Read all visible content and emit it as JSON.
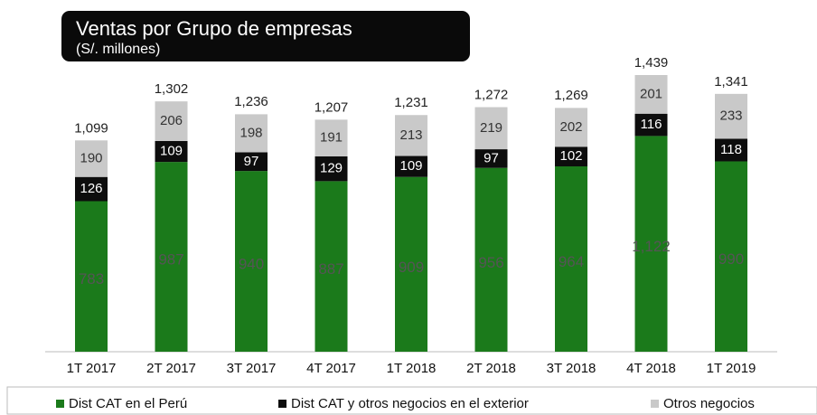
{
  "chart_data": {
    "type": "stacked_bar",
    "title": "Ventas por Grupo de empresas",
    "subtitle": "(S/. millones)",
    "categories": [
      "1T 2017",
      "2T 2017",
      "3T 2017",
      "4T 2017",
      "1T 2018",
      "2T 2018",
      "3T 2018",
      "4T 2018",
      "1T 2019"
    ],
    "series": [
      {
        "name": "Dist CAT en el Perú",
        "color": "#1b7a1b",
        "values": [
          783,
          987,
          940,
          887,
          909,
          956,
          964,
          1122,
          990
        ],
        "value_labels": [
          "783",
          "987",
          "940",
          "887",
          "909",
          "956",
          "964",
          "1,122",
          "990"
        ]
      },
      {
        "name": "Dist CAT y otros negocios en el exterior",
        "color": "#0d0d0d",
        "values": [
          126,
          109,
          97,
          129,
          109,
          97,
          102,
          116,
          118
        ]
      },
      {
        "name": "Otros negocios",
        "color": "#c9c9c9",
        "values": [
          190,
          206,
          198,
          191,
          213,
          219,
          202,
          201,
          233
        ]
      }
    ],
    "totals": [
      1099,
      1302,
      1236,
      1207,
      1231,
      1272,
      1269,
      1439,
      1341
    ],
    "total_labels": [
      "1,099",
      "1,302",
      "1,236",
      "1,207",
      "1,231",
      "1,272",
      "1,269",
      "1,439",
      "1,341"
    ],
    "legend": "bottom"
  }
}
